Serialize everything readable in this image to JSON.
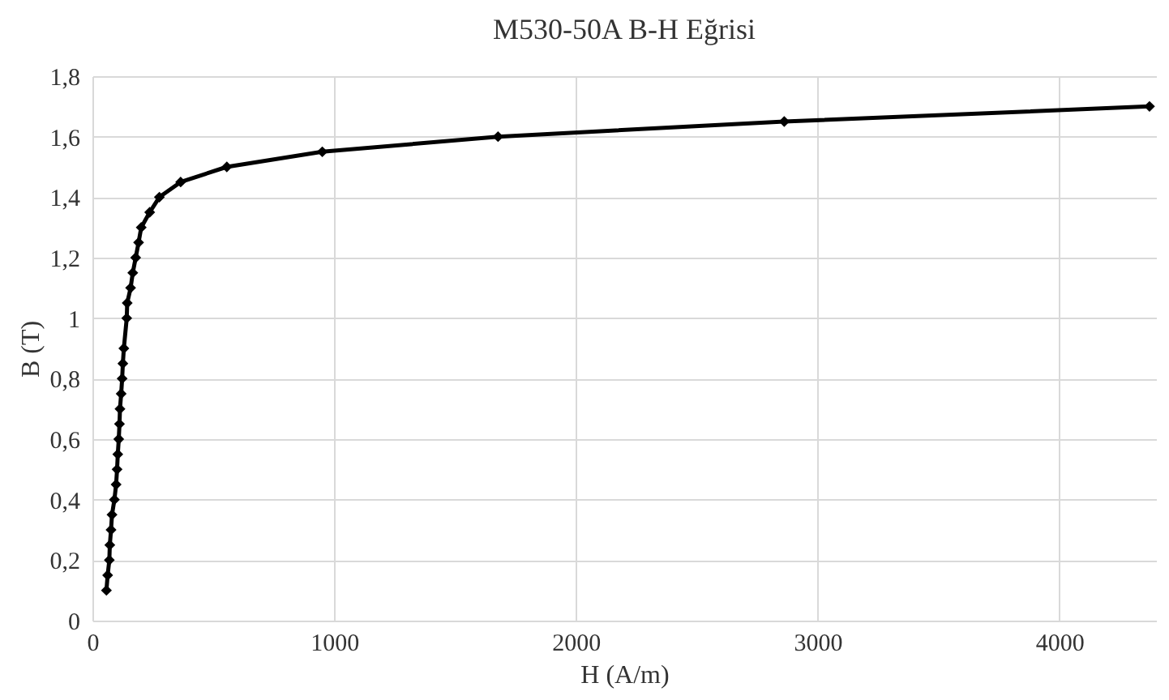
{
  "chart_data": {
    "type": "line",
    "title": "M530-50A B-H Eğrisi",
    "xlabel": "H (A/m)",
    "ylabel": "B (T)",
    "x": [
      58,
      63,
      70,
      72,
      77,
      81,
      91,
      98,
      102,
      105,
      109,
      112,
      114,
      119,
      123,
      126,
      130,
      142,
      144,
      158,
      167,
      179,
      191,
      202,
      237,
      277,
      365,
      556,
      951,
      1678,
      2862,
      4373
    ],
    "series": [
      {
        "color": "#000000",
        "values": [
          0.1,
          0.15,
          0.2,
          0.25,
          0.3,
          0.35,
          0.4,
          0.45,
          0.5,
          0.55,
          0.6,
          0.65,
          0.7,
          0.75,
          0.8,
          0.85,
          0.9,
          1.0,
          1.05,
          1.1,
          1.15,
          1.2,
          1.25,
          1.3,
          1.35,
          1.4,
          1.45,
          1.5,
          1.55,
          1.6,
          1.65,
          1.7
        ]
      }
    ],
    "xlim": [
      0,
      4400
    ],
    "xticks": [
      0,
      1000,
      2000,
      3000,
      4000
    ],
    "ylim": [
      0,
      1.8
    ],
    "yticks": [
      0,
      {
        "value": 0.2,
        "label": "0,2"
      },
      {
        "value": 0.4,
        "label": "0,4"
      },
      {
        "value": 0.6,
        "label": "0,6"
      },
      {
        "value": 0.8,
        "label": "0,8"
      },
      1,
      {
        "value": 1.2,
        "label": "1,2"
      },
      {
        "value": 1.4,
        "label": "1,4"
      },
      {
        "value": 1.6,
        "label": "1,6"
      },
      {
        "value": 1.8,
        "label": "1,8"
      }
    ],
    "grid": true,
    "marker": "diamond",
    "line_style": "solid"
  }
}
